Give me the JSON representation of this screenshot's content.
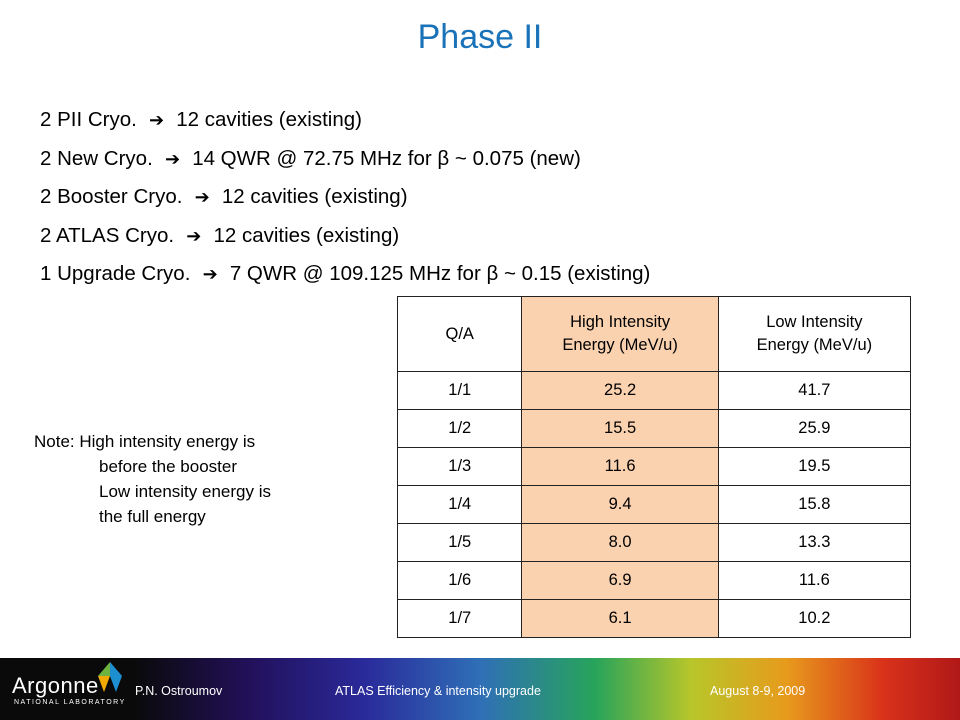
{
  "title": "Phase II",
  "bullets": [
    {
      "text_before": "2 PII Cryo.",
      "text_after": "12 cavities (existing)"
    },
    {
      "text_before": "2 New Cryo.",
      "text_after": "14 QWR @ 72.75 MHz for β ~ 0.075 (new)"
    },
    {
      "text_before": "2 Booster Cryo.",
      "text_after": "12 cavities (existing)"
    },
    {
      "text_before": "2 ATLAS Cryo.",
      "text_after": "12 cavities (existing)"
    },
    {
      "text_before": "1 Upgrade Cryo.",
      "text_after": "7 QWR @ 109.125 MHz for β ~ 0.15 (existing)"
    }
  ],
  "arrow_glyph": "➔",
  "table": {
    "headers": {
      "qa": "Q/A",
      "high_line1": "High Intensity",
      "high_line2": "Energy (MeV/u)",
      "low_line1": "Low Intensity",
      "low_line2": "Energy (MeV/u)"
    },
    "rows": [
      {
        "qa": "1/1",
        "high": "25.2",
        "low": "41.7"
      },
      {
        "qa": "1/2",
        "high": "15.5",
        "low": "25.9"
      },
      {
        "qa": "1/3",
        "high": "11.6",
        "low": "19.5"
      },
      {
        "qa": "1/4",
        "high": "9.4",
        "low": "15.8"
      },
      {
        "qa": "1/5",
        "high": "8.0",
        "low": "13.3"
      },
      {
        "qa": "1/6",
        "high": "6.9",
        "low": "11.6"
      },
      {
        "qa": "1/7",
        "high": "6.1",
        "low": "10.2"
      }
    ],
    "highlight_color": "#fbd2b0"
  },
  "note": {
    "lines": [
      "Note: High intensity energy is",
      "before the booster",
      "Low intensity energy is",
      "the full energy"
    ]
  },
  "footer": {
    "logo_word": "Argonne",
    "logo_sub": "NATIONAL LABORATORY",
    "author": "P.N. Ostroumov",
    "topic": "ATLAS Efficiency & intensity upgrade",
    "date": "August 8-9, 2009"
  },
  "colors": {
    "title": "#1a73b8",
    "logo_triangles": [
      "#1d8fd1",
      "#6db33f",
      "#f2a900"
    ]
  }
}
